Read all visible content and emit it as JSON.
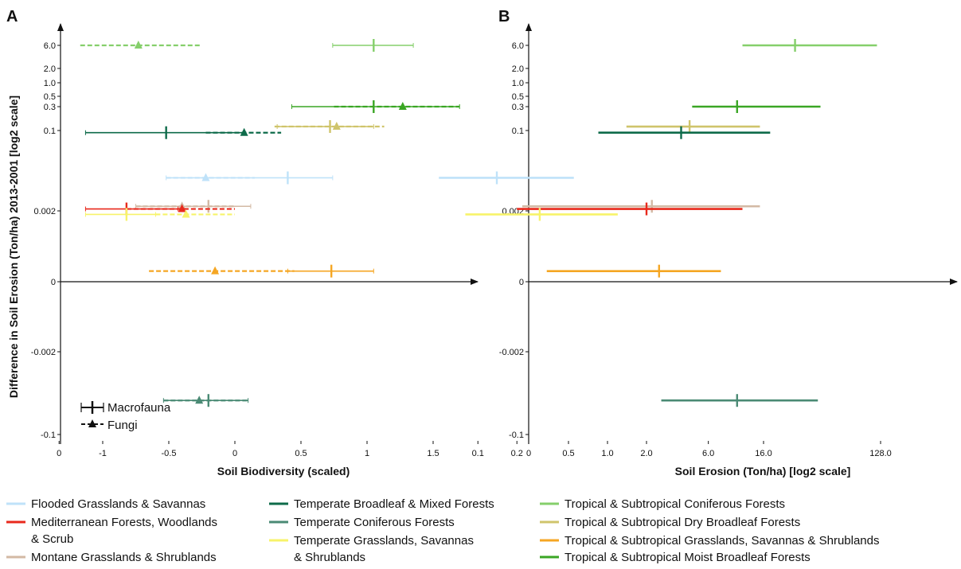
{
  "panels": {
    "a": {
      "letter": "A",
      "xlabel": "Soil Biodiversity (scaled)"
    },
    "b": {
      "letter": "B",
      "xlabel": "Soil Erosion (Ton/ha) [log2 scale]"
    }
  },
  "ylabel": "Difference in Soil Erosion (Ton/ha) 2013-2001 [log2 scale]",
  "inset_legend": {
    "macrofauna": "Macrofauna",
    "fungi": "Fungi"
  },
  "biomes": [
    {
      "id": "flooded",
      "lines": [
        "Flooded Grasslands & Savannas"
      ],
      "color": "#bfe2f9"
    },
    {
      "id": "mediterranean",
      "lines": [
        "Mediterranean Forests, Woodlands",
        "& Scrub"
      ],
      "color": "#e8291c"
    },
    {
      "id": "montane",
      "lines": [
        "Montane Grasslands & Shrublands"
      ],
      "color": "#d3b9a4"
    },
    {
      "id": "temp_broadleaf",
      "lines": [
        "Temperate Broadleaf & Mixed Forests"
      ],
      "color": "#0e6b4a"
    },
    {
      "id": "temp_conifer",
      "lines": [
        "Temperate Coniferous Forests"
      ],
      "color": "#4a8a74"
    },
    {
      "id": "temp_grass",
      "lines": [
        "Temperate Grasslands, Savannas",
        "& Shrublands"
      ],
      "color": "#f7f36a"
    },
    {
      "id": "trop_conifer",
      "lines": [
        "Tropical & Subtropical Coniferous Forests"
      ],
      "color": "#85cf6b"
    },
    {
      "id": "trop_dry",
      "lines": [
        "Tropical & Subtropical Dry Broadleaf Forests"
      ],
      "color": "#cfc46b"
    },
    {
      "id": "trop_grass",
      "lines": [
        "Tropical & Subtropical Grasslands, Savannas & Shrublands"
      ],
      "color": "#f5a623"
    },
    {
      "id": "trop_moist",
      "lines": [
        "Tropical & Subtropical Moist Broadleaf Forests"
      ],
      "color": "#3aa624"
    }
  ],
  "chart_data": [
    {
      "type": "scatter",
      "panel": "A",
      "xlabel": "Soil Biodiversity (scaled)",
      "ylabel": "Difference in Soil Erosion (Ton/ha) 2013-2001 [log2 scale]",
      "x_ticks": [
        "0",
        "-1",
        "-0.5",
        "0",
        "0.5",
        "1",
        "1.5"
      ],
      "y_ticks": [
        "6.0",
        "2.0",
        "1.0",
        "0.5",
        "0.3",
        "0.1",
        "0.002",
        "0",
        "-0.002",
        "-0.1"
      ],
      "series": [
        {
          "biome": "trop_conifer",
          "y": 6.0,
          "macrofauna": {
            "x": 1.05,
            "lo": 0.74,
            "hi": 1.35
          },
          "fungi": {
            "x": -0.73,
            "lo": -1.17,
            "hi": -0.25
          }
        },
        {
          "biome": "trop_moist",
          "y": 0.3,
          "macrofauna": {
            "x": 1.05,
            "lo": 0.43,
            "hi": 1.7
          },
          "fungi": {
            "x": 1.27,
            "lo": 0.75,
            "hi": 1.7
          }
        },
        {
          "biome": "trop_dry",
          "y": 0.12,
          "macrofauna": {
            "x": 0.72,
            "lo": 0.32,
            "hi": 1.05
          },
          "fungi": {
            "x": 0.77,
            "lo": 0.3,
            "hi": 1.13
          }
        },
        {
          "biome": "temp_broadleaf",
          "y": 0.09,
          "macrofauna": {
            "x": -0.52,
            "lo": -1.13,
            "hi": 0.07
          },
          "fungi": {
            "x": 0.07,
            "lo": -0.22,
            "hi": 0.35
          }
        },
        {
          "biome": "flooded",
          "y": 0.01,
          "macrofauna": {
            "x": 0.4,
            "lo": -0.52,
            "hi": 0.74
          },
          "fungi": {
            "x": -0.22,
            "lo": -0.52,
            "hi": 0.15
          }
        },
        {
          "biome": "montane",
          "y": 0.0025,
          "macrofauna": {
            "x": -0.2,
            "lo": -0.75,
            "hi": 0.12
          },
          "fungi": {
            "x": -0.4,
            "lo": -0.75,
            "hi": 0.0
          }
        },
        {
          "biome": "mediterranean",
          "y": 0.0022,
          "macrofauna": {
            "x": -0.82,
            "lo": -1.13,
            "hi": -0.43
          },
          "fungi": {
            "x": -0.4,
            "lo": -0.82,
            "hi": 0.0
          }
        },
        {
          "biome": "temp_grass",
          "y": 0.0019,
          "macrofauna": {
            "x": -0.82,
            "lo": -1.13,
            "hi": -0.6
          },
          "fungi": {
            "x": -0.37,
            "lo": -0.6,
            "hi": 0.0
          }
        },
        {
          "biome": "trop_grass",
          "y": 0.0003,
          "macrofauna": {
            "x": 0.73,
            "lo": 0.4,
            "hi": 1.05
          },
          "fungi": {
            "x": -0.15,
            "lo": -0.65,
            "hi": 0.45
          }
        },
        {
          "biome": "temp_conifer",
          "y": -0.02,
          "macrofauna": {
            "x": -0.2,
            "lo": -0.54,
            "hi": 0.1
          },
          "fungi": {
            "x": -0.27,
            "lo": -0.54,
            "hi": 0.1
          }
        }
      ]
    },
    {
      "type": "scatter",
      "panel": "B",
      "xlabel": "Soil Erosion (Ton/ha) [log2 scale]",
      "x_ticks": [
        "0",
        "0.1",
        "0.2",
        "0.5",
        "1.0",
        "2.0",
        "6.0",
        "16.0",
        "128.0"
      ],
      "y_ticks": [
        "6.0",
        "2.0",
        "1.0",
        "0.5",
        "0.3",
        "0.1",
        "0.002",
        "0",
        "-0.002",
        "-0.1"
      ],
      "series": [
        {
          "biome": "trop_conifer",
          "y": 6.0,
          "erosion": {
            "x": 28,
            "lo": 11,
            "hi": 120
          }
        },
        {
          "biome": "trop_moist",
          "y": 0.3,
          "erosion": {
            "x": 10,
            "lo": 4.5,
            "hi": 44
          }
        },
        {
          "biome": "trop_dry",
          "y": 0.12,
          "erosion": {
            "x": 4.3,
            "lo": 1.4,
            "hi": 15
          }
        },
        {
          "biome": "temp_broadleaf",
          "y": 0.09,
          "erosion": {
            "x": 3.7,
            "lo": 0.85,
            "hi": 18
          }
        },
        {
          "biome": "flooded",
          "y": 0.01,
          "erosion": {
            "x": 0.14,
            "lo": 0.05,
            "hi": 0.55
          }
        },
        {
          "biome": "montane",
          "y": 0.0025,
          "erosion": {
            "x": 2.2,
            "lo": 0.22,
            "hi": 15
          }
        },
        {
          "biome": "mediterranean",
          "y": 0.0022,
          "erosion": {
            "x": 2.0,
            "lo": 0.2,
            "hi": 11
          }
        },
        {
          "biome": "temp_grass",
          "y": 0.0019,
          "erosion": {
            "x": 0.3,
            "lo": 0.08,
            "hi": 1.2
          }
        },
        {
          "biome": "trop_grass",
          "y": 0.0003,
          "erosion": {
            "x": 2.5,
            "lo": 0.34,
            "hi": 7.5
          }
        },
        {
          "biome": "temp_conifer",
          "y": -0.02,
          "erosion": {
            "x": 10,
            "lo": 2.6,
            "hi": 42
          }
        }
      ]
    }
  ]
}
